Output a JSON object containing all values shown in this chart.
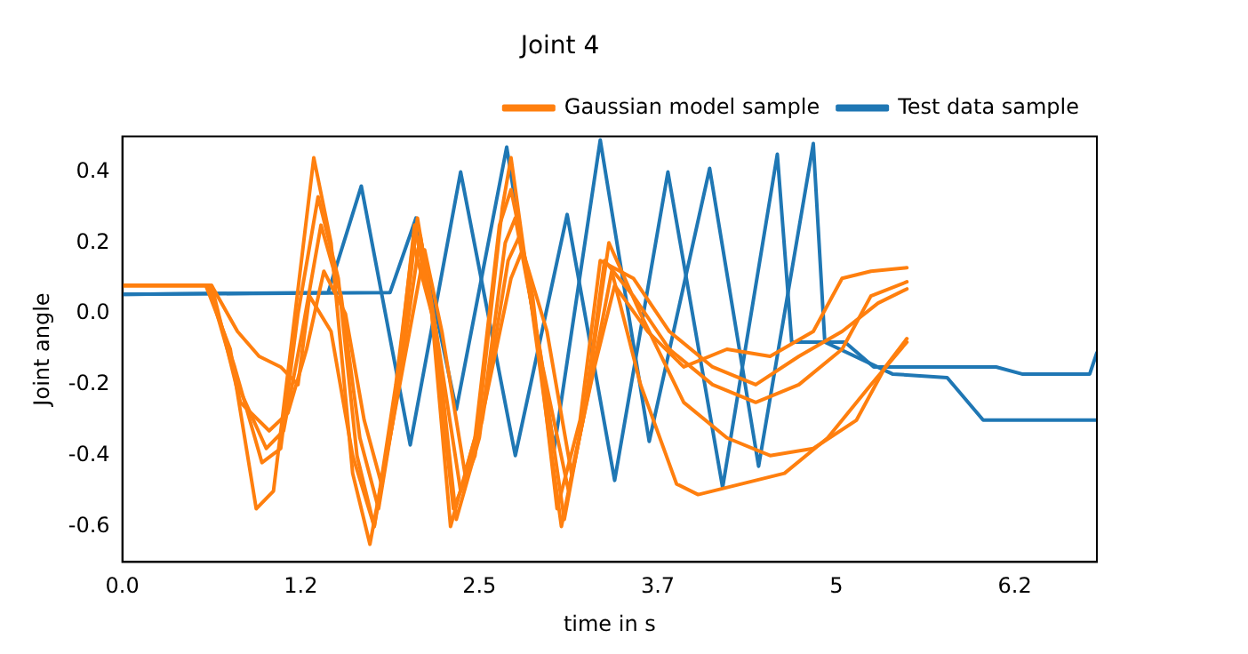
{
  "chart_data": {
    "type": "line",
    "title": "Joint 4",
    "xlabel": "time in s",
    "ylabel": "Joint angle",
    "xlim": [
      0,
      6.77
    ],
    "ylim": [
      -0.7,
      0.5
    ],
    "xticks": [
      {
        "value": 0,
        "label": "0.0"
      },
      {
        "value": 1.24,
        "label": "1.2"
      },
      {
        "value": 2.48,
        "label": "2.5"
      },
      {
        "value": 3.72,
        "label": "3.7"
      },
      {
        "value": 4.96,
        "label": "5"
      },
      {
        "value": 6.2,
        "label": "6.2"
      }
    ],
    "yticks": [
      {
        "value": -0.6,
        "label": "-0.6"
      },
      {
        "value": -0.4,
        "label": "-0.4"
      },
      {
        "value": -0.2,
        "label": "-0.2"
      },
      {
        "value": 0,
        "label": "0.0"
      },
      {
        "value": 0.2,
        "label": "0.2"
      },
      {
        "value": 0.4,
        "label": "0.4"
      }
    ],
    "grid": false,
    "legend": "top right",
    "marker": "none",
    "line_style": "solid",
    "series": [
      {
        "name": "Gaussian model sample",
        "color": "#ff7f0e",
        "x": [
          0,
          0.58,
          0.75,
          0.93,
          1.05,
          1.2,
          1.33,
          1.45,
          1.6,
          1.72,
          1.88,
          2.03,
          2.15,
          2.3,
          2.45,
          2.64,
          2.7,
          2.85,
          3.05,
          3.2,
          3.35,
          3.55,
          3.8,
          4.1,
          4.4,
          4.7,
          5.0,
          5.2,
          5.45
        ],
        "values": [
          0.08,
          0.08,
          -0.1,
          -0.55,
          -0.5,
          0.0,
          0.44,
          0.2,
          -0.45,
          -0.65,
          -0.3,
          0.25,
          0.0,
          -0.55,
          -0.4,
          0.3,
          0.44,
          0.0,
          -0.6,
          -0.3,
          0.15,
          0.05,
          -0.1,
          -0.2,
          -0.25,
          -0.2,
          -0.1,
          0.05,
          0.09
        ]
      },
      {
        "color": "#ff7f0e",
        "x": [
          0,
          0.6,
          0.78,
          0.97,
          1.1,
          1.22,
          1.36,
          1.5,
          1.63,
          1.75,
          1.9,
          2.05,
          2.18,
          2.32,
          2.48,
          2.66,
          2.73,
          2.9,
          3.07,
          3.22,
          3.38,
          3.6,
          3.9,
          4.2,
          4.5,
          4.8,
          5.1,
          5.3,
          5.45
        ],
        "values": [
          0.08,
          0.08,
          -0.15,
          -0.42,
          -0.38,
          0.0,
          0.33,
          0.1,
          -0.4,
          -0.6,
          -0.25,
          0.27,
          -0.05,
          -0.58,
          -0.35,
          0.2,
          0.27,
          -0.1,
          -0.58,
          -0.25,
          0.2,
          0.0,
          -0.25,
          -0.35,
          -0.4,
          -0.38,
          -0.3,
          -0.15,
          -0.07
        ]
      },
      {
        "color": "#ff7f0e",
        "x": [
          0,
          0.6,
          0.8,
          1.0,
          1.12,
          1.25,
          1.38,
          1.52,
          1.65,
          1.78,
          1.92,
          2.07,
          2.2,
          2.35,
          2.5,
          2.68,
          2.76,
          2.92,
          3.1,
          3.25,
          3.4,
          3.6,
          3.85,
          4.0,
          4.3,
          4.6,
          4.9,
          5.2,
          5.45
        ],
        "values": [
          0.08,
          0.08,
          -0.2,
          -0.38,
          -0.33,
          -0.05,
          0.25,
          0.05,
          -0.35,
          -0.55,
          -0.2,
          0.22,
          -0.1,
          -0.5,
          -0.3,
          0.15,
          0.22,
          -0.15,
          -0.5,
          -0.2,
          0.12,
          -0.2,
          -0.48,
          -0.51,
          -0.48,
          -0.45,
          -0.35,
          -0.2,
          -0.08
        ]
      },
      {
        "color": "#ff7f0e",
        "x": [
          0,
          0.62,
          0.82,
          1.02,
          1.15,
          1.28,
          1.4,
          1.55,
          1.68,
          1.8,
          1.95,
          2.1,
          2.22,
          2.38,
          2.52,
          2.7,
          2.78,
          2.95,
          3.12,
          3.28,
          3.42,
          3.65,
          3.9,
          4.2,
          4.5,
          4.8,
          5.0,
          5.2,
          5.45
        ],
        "values": [
          0.08,
          0.08,
          -0.25,
          -0.33,
          -0.28,
          -0.1,
          0.12,
          0.0,
          -0.3,
          -0.48,
          -0.15,
          0.18,
          -0.05,
          -0.45,
          -0.25,
          0.1,
          0.18,
          -0.05,
          -0.45,
          -0.15,
          0.08,
          -0.05,
          -0.15,
          -0.1,
          -0.12,
          -0.05,
          0.1,
          0.12,
          0.13
        ]
      },
      {
        "color": "#ff7f0e",
        "x": [
          0,
          0.62,
          0.8,
          0.95,
          1.1,
          1.22,
          1.3,
          1.45,
          1.6,
          1.75,
          1.9,
          2.02,
          2.15,
          2.28,
          2.45,
          2.62,
          2.7,
          2.85,
          3.02,
          3.18,
          3.32,
          3.55,
          3.8,
          4.1,
          4.4,
          4.7,
          5.0,
          5.25,
          5.45
        ],
        "values": [
          0.08,
          0.08,
          -0.05,
          -0.12,
          -0.15,
          -0.2,
          0.05,
          -0.05,
          -0.4,
          -0.6,
          -0.2,
          0.2,
          0.0,
          -0.6,
          -0.35,
          0.25,
          0.35,
          0.05,
          -0.55,
          -0.3,
          0.15,
          0.1,
          -0.05,
          -0.15,
          -0.2,
          -0.12,
          -0.05,
          0.03,
          0.07
        ]
      },
      {
        "name": "Test data sample",
        "color": "#1f77b4",
        "x": [
          0,
          1.43,
          1.66,
          2.0,
          2.35,
          2.73,
          3.09,
          3.42,
          3.79,
          4.17,
          4.55,
          4.65,
          4.75,
          5.02,
          5.22,
          6.07,
          6.25,
          6.72,
          6.77
        ],
        "values": [
          0.055,
          0.06,
          0.36,
          -0.37,
          0.4,
          -0.4,
          0.28,
          -0.47,
          0.4,
          -0.49,
          0.45,
          -0.08,
          -0.08,
          -0.08,
          -0.15,
          -0.15,
          -0.17,
          -0.17,
          -0.11
        ]
      },
      {
        "color": "#1f77b4",
        "x": [
          0,
          1.86,
          2.04,
          2.32,
          2.67,
          3.0,
          3.32,
          3.66,
          4.08,
          4.42,
          4.8,
          4.88,
          5.35,
          5.73,
          5.98,
          6.77
        ],
        "values": [
          0.055,
          0.06,
          0.27,
          -0.27,
          0.47,
          -0.38,
          0.49,
          -0.36,
          0.41,
          -0.43,
          0.48,
          -0.08,
          -0.17,
          -0.18,
          -0.3,
          -0.3
        ]
      }
    ]
  }
}
